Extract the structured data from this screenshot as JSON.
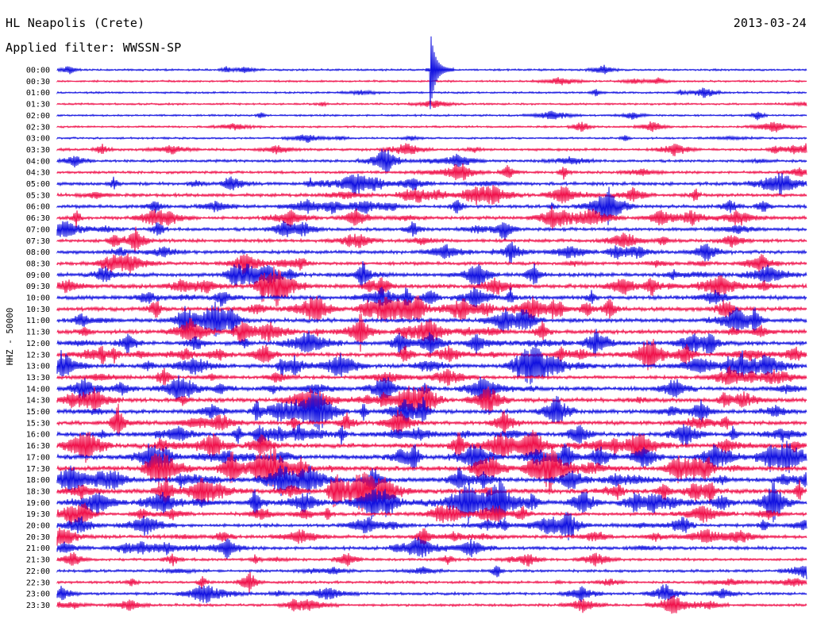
{
  "header": {
    "station": "HL Neapolis (Crete)",
    "date": "2013-03-24",
    "filter": "Applied filter: WWSSN-SP"
  },
  "colors": {
    "blue": "#1010e0",
    "red": "#f0104a"
  },
  "chart_data": {
    "type": "helicorder",
    "ylabel": "HHZ - 50000",
    "row_labels": [
      "00:00",
      "00:30",
      "01:00",
      "01:30",
      "02:00",
      "02:30",
      "03:00",
      "03:30",
      "04:00",
      "04:30",
      "05:00",
      "05:30",
      "06:00",
      "06:30",
      "07:00",
      "07:30",
      "08:00",
      "08:30",
      "09:00",
      "09:30",
      "10:00",
      "10:30",
      "11:00",
      "11:30",
      "12:00",
      "12:30",
      "13:00",
      "13:30",
      "14:00",
      "14:30",
      "15:00",
      "15:30",
      "16:00",
      "16:30",
      "17:00",
      "17:30",
      "18:00",
      "18:30",
      "19:00",
      "19:30",
      "20:00",
      "20:30",
      "21:00",
      "21:30",
      "22:00",
      "22:30",
      "23:00",
      "23:30"
    ],
    "row_colors": [
      "blue",
      "red"
    ],
    "activity": [
      1,
      1,
      1,
      1,
      1,
      1,
      1,
      2,
      2,
      2,
      3,
      3,
      3,
      3,
      3,
      3,
      3,
      3,
      4,
      4,
      4,
      4,
      4,
      4,
      4,
      4,
      4,
      3,
      4,
      4,
      4,
      4,
      4,
      5,
      5,
      5,
      5,
      5,
      5,
      3,
      3,
      3,
      3,
      2,
      2,
      2,
      2,
      2
    ]
  }
}
